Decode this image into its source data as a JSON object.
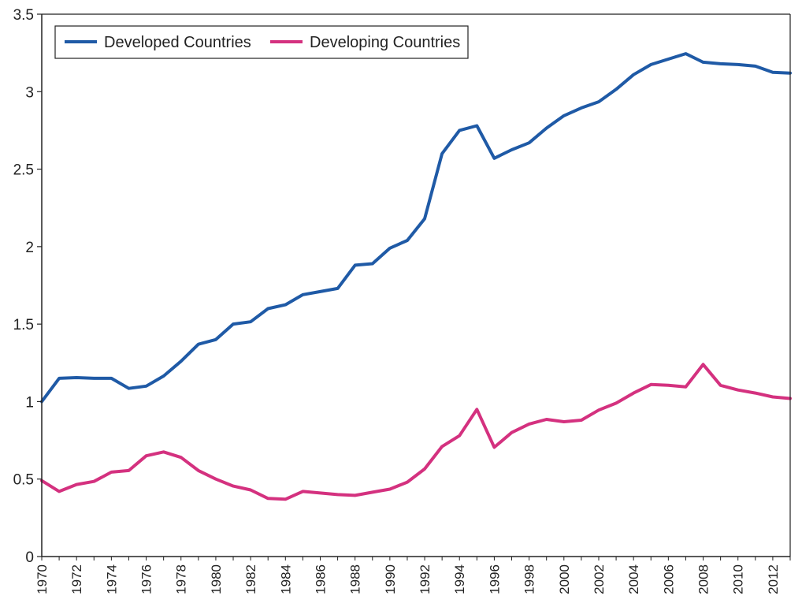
{
  "chart_data": {
    "type": "line",
    "title": "",
    "xlabel": "",
    "ylabel": "",
    "xlim": [
      1970,
      2013
    ],
    "ylim": [
      0,
      3.5
    ],
    "y_ticks": [
      "0",
      "0.5",
      "1",
      "1.5",
      "2",
      "2.5",
      "3",
      "3.5"
    ],
    "y_tick_values": [
      0,
      0.5,
      1,
      1.5,
      2,
      2.5,
      3,
      3.5
    ],
    "x_ticks": [
      "1970",
      "1972",
      "1974",
      "1976",
      "1978",
      "1980",
      "1982",
      "1984",
      "1986",
      "1988",
      "1990",
      "1992",
      "1994",
      "1996",
      "1998",
      "2000",
      "2002",
      "2004",
      "2006",
      "2008",
      "2010",
      "2012"
    ],
    "x_tick_values": [
      1970,
      1972,
      1974,
      1976,
      1978,
      1980,
      1982,
      1984,
      1986,
      1988,
      1990,
      1992,
      1994,
      1996,
      1998,
      2000,
      2002,
      2004,
      2006,
      2008,
      2010,
      2012
    ],
    "grid": false,
    "legend_position": "top-left",
    "x": [
      1970,
      1971,
      1972,
      1973,
      1974,
      1975,
      1976,
      1977,
      1978,
      1979,
      1980,
      1981,
      1982,
      1983,
      1984,
      1985,
      1986,
      1987,
      1988,
      1989,
      1990,
      1991,
      1992,
      1993,
      1994,
      1995,
      1996,
      1997,
      1998,
      1999,
      2000,
      2001,
      2002,
      2003,
      2004,
      2005,
      2006,
      2007,
      2008,
      2009,
      2010,
      2011,
      2012,
      2013
    ],
    "series": [
      {
        "name": "Developed Countries",
        "color": "#1f5aa6",
        "values": [
          1.0,
          1.15,
          1.155,
          1.15,
          1.15,
          1.085,
          1.1,
          1.165,
          1.26,
          1.37,
          1.4,
          1.5,
          1.515,
          1.6,
          1.625,
          1.69,
          1.71,
          1.73,
          1.88,
          1.89,
          1.99,
          2.04,
          2.18,
          2.6,
          2.75,
          2.78,
          2.57,
          2.625,
          2.67,
          2.765,
          2.845,
          2.895,
          2.935,
          3.015,
          3.11,
          3.175,
          3.21,
          3.245,
          3.19,
          3.18,
          3.175,
          3.165,
          3.125,
          3.12
        ]
      },
      {
        "name": "Developing Countries",
        "color": "#d4317f",
        "values": [
          0.49,
          0.42,
          0.465,
          0.485,
          0.545,
          0.555,
          0.65,
          0.675,
          0.64,
          0.555,
          0.5,
          0.455,
          0.43,
          0.375,
          0.37,
          0.42,
          0.41,
          0.4,
          0.395,
          0.415,
          0.435,
          0.48,
          0.565,
          0.71,
          0.78,
          0.95,
          0.705,
          0.8,
          0.855,
          0.885,
          0.87,
          0.88,
          0.945,
          0.99,
          1.055,
          1.11,
          1.105,
          1.095,
          1.24,
          1.105,
          1.075,
          1.055,
          1.03,
          1.02
        ]
      }
    ]
  }
}
